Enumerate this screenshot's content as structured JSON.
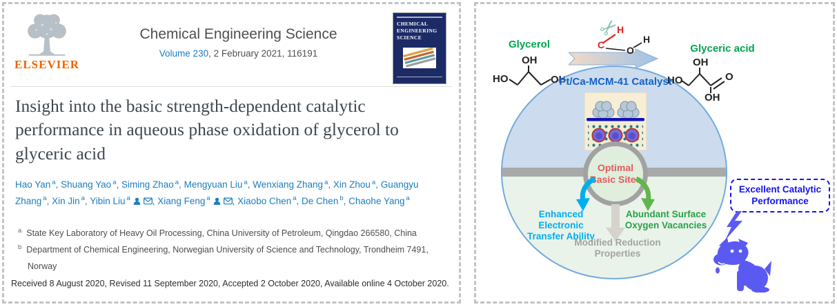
{
  "left_panel": {
    "publisher_wordmark": "ELSEVIER",
    "journal": {
      "name": "Chemical Engineering Science",
      "volume_link": "Volume 230",
      "issue_info": ", 2 February 2021, 116191",
      "cover_title": "CHEMICAL\nENGINEERING\nSCIENCE"
    },
    "article": {
      "title": "Insight into the basic strength-dependent catalytic performance in aqueous phase oxidation of glycerol to glyceric acid",
      "author_separator": ", ",
      "authors": [
        {
          "name": "Hao Yan",
          "sup": "a",
          "person_icon": false,
          "mail_icon": false
        },
        {
          "name": "Shuang Yao",
          "sup": "a",
          "person_icon": false,
          "mail_icon": false
        },
        {
          "name": "Siming Zhao",
          "sup": "a",
          "person_icon": false,
          "mail_icon": false
        },
        {
          "name": "Mengyuan Liu",
          "sup": "a",
          "person_icon": false,
          "mail_icon": false
        },
        {
          "name": "Wenxiang Zhang",
          "sup": "a",
          "person_icon": false,
          "mail_icon": false
        },
        {
          "name": "Xin Zhou",
          "sup": "a",
          "person_icon": false,
          "mail_icon": false
        },
        {
          "name": "Guangyu Zhang",
          "sup": "a",
          "person_icon": false,
          "mail_icon": false
        },
        {
          "name": "Xin Jin",
          "sup": "a",
          "person_icon": false,
          "mail_icon": false
        },
        {
          "name": "Yibin Liu",
          "sup": "a",
          "person_icon": true,
          "mail_icon": true
        },
        {
          "name": "Xiang Feng",
          "sup": "a",
          "person_icon": true,
          "mail_icon": true
        },
        {
          "name": "Xiaobo Chen",
          "sup": "a",
          "person_icon": false,
          "mail_icon": false
        },
        {
          "name": "De Chen",
          "sup": "b",
          "person_icon": false,
          "mail_icon": false
        },
        {
          "name": "Chaohe Yang",
          "sup": "a",
          "person_icon": false,
          "mail_icon": false
        }
      ],
      "affiliations": [
        {
          "sup": "a",
          "text": "State Key Laboratory of Heavy Oil Processing, China University of Petroleum, Qingdao 266580, China"
        },
        {
          "sup": "b",
          "text": "Department of Chemical Engineering, Norwegian University of Science and Technology, Trondheim 7491, Norway"
        }
      ],
      "dates": "Received 8 August 2020, Revised 11 September 2020, Accepted 2 October 2020, Available online 4 October 2020."
    }
  },
  "graphical_abstract": {
    "reactant_label": "Glycerol",
    "product_label": "Glyceric acid",
    "catalyst_label": "Pt/Ca-MCM-41 Catalyst",
    "center_label": "Optimal\nBasic Sites",
    "factor_left": "Enhanced Electronic\nTransfer Ability",
    "factor_right": "Abundant Surface\nOxygen Vacancies",
    "factor_bottom": "Modified Reduction\nProperties",
    "outcome_label": "Excellent Catalytic\nPerformance",
    "molecule_atoms": {
      "c": "C",
      "h_red": "H",
      "o": "O",
      "h_black": "H"
    },
    "glycerol_atoms": {
      "ho": "HO",
      "oh_top": "OH",
      "oh_right": "OH"
    },
    "glyceric_atoms": {
      "ho": "HO",
      "oh_top": "OH",
      "o_double": "O",
      "oh_bottom": "OH"
    },
    "icons": [
      "scissors-icon",
      "lightning-icon",
      "dog-icon",
      "person-icon",
      "envelope-icon",
      "elsevier-tree-icon"
    ],
    "colors": {
      "link_blue": "#1b7cc4",
      "elsevier_orange": "#eb6500",
      "cover_navy": "#1c2b66",
      "green_label": "#00a44e",
      "catalyst_blue": "#1463c8",
      "center_red": "#e45c5c",
      "cyan": "#00aeef",
      "factor_green": "#2ba04a",
      "muted_gray": "#a3a3a3",
      "outcome_blue": "#1414f0",
      "dog_indigo": "#5a5af2"
    }
  }
}
